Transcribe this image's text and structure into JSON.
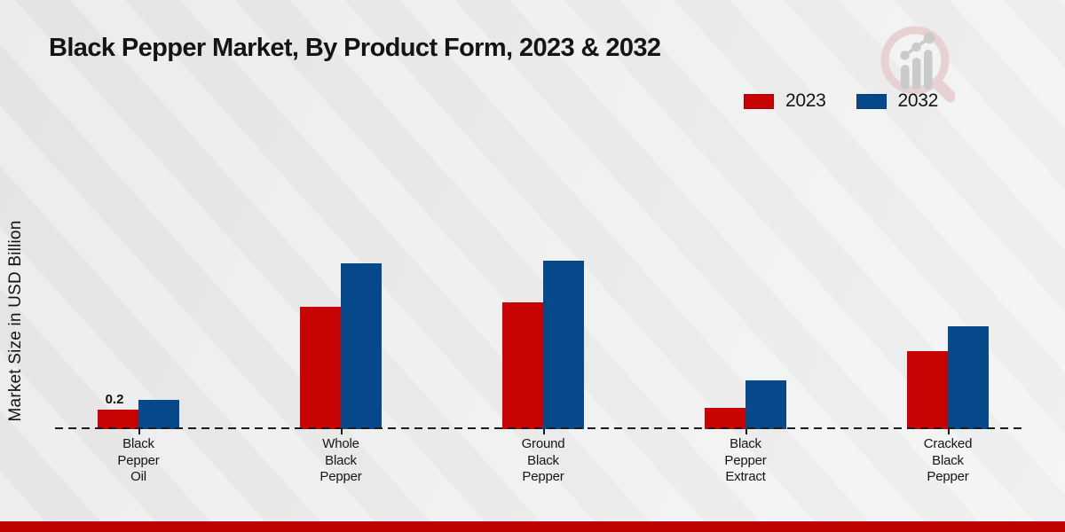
{
  "chart_data": {
    "type": "bar",
    "title": "Black Pepper Market, By Product Form, 2023 & 2032",
    "ylabel": "Market Size in USD Billion",
    "categories": [
      "Black Pepper Oil",
      "Whole Black Pepper",
      "Ground Black Pepper",
      "Black Pepper Extract",
      "Cracked Black Pepper"
    ],
    "category_label_lines": [
      [
        "Black",
        "Pepper",
        "Oil"
      ],
      [
        "Whole",
        "Black",
        "Pepper"
      ],
      [
        "Ground",
        "Black",
        "Pepper"
      ],
      [
        "Black",
        "Pepper",
        "Extract"
      ],
      [
        "Cracked",
        "Black",
        "Pepper"
      ]
    ],
    "series": [
      {
        "name": "2023",
        "color": "#c80303",
        "values": [
          0.2,
          1.25,
          1.3,
          0.22,
          0.8
        ],
        "data_labels": [
          "0.2",
          "",
          "",
          "",
          ""
        ]
      },
      {
        "name": "2032",
        "color": "#05498a",
        "values": [
          0.3,
          1.7,
          1.73,
          0.5,
          1.05
        ],
        "data_labels": [
          "",
          "",
          "",
          "",
          ""
        ]
      }
    ],
    "ylim": [
      0,
      2
    ],
    "grid": false,
    "legend_position": "top-right",
    "baseline_style": "dashed",
    "value_unit": "USD Billion"
  },
  "colors": {
    "background": "#ececec",
    "text": "#141414",
    "footer_bar": "#bd0302",
    "logo_ring": "#e7d1d2",
    "logo_gray": "#c9caca"
  },
  "icons": {
    "brand_logo": "magnifier-with-bar-chart"
  }
}
